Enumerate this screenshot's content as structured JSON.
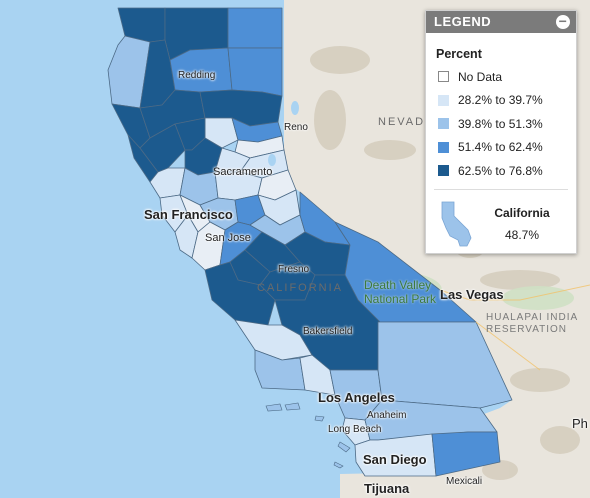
{
  "legend": {
    "header": "LEGEND",
    "collapse_icon": "minus-circle-icon",
    "title": "Percent",
    "items": [
      {
        "label": "No Data",
        "color": "#ffffff"
      },
      {
        "label": "28.2% to 39.7%",
        "color": "#d6e6f6"
      },
      {
        "label": "39.8% to 51.3%",
        "color": "#9cc3ea"
      },
      {
        "label": "51.4% to 62.4%",
        "color": "#4e8fd6"
      },
      {
        "label": "62.5% to 76.8%",
        "color": "#1c5a8e"
      }
    ],
    "state_name": "California",
    "state_value": "48.7%",
    "state_icon": "california-shape-icon"
  },
  "labels": {
    "nevada": "NEVADA",
    "california": "CALIFORNIA",
    "las_vegas": "Las Vegas",
    "san_francisco": "San Francisco",
    "san_jose": "San Jose",
    "sacramento": "Sacramento",
    "reno": "Reno",
    "redding": "Redding",
    "fresno": "Fresno",
    "bakersfield": "Bakersfield",
    "los_angeles": "Los Angeles",
    "anaheim": "Anaheim",
    "long_beach": "Long Beach",
    "san_diego": "San Diego",
    "tijuana": "Tijuana",
    "mexicali": "Mexicali",
    "death_valley_1": "Death Valley",
    "death_valley_2": "National Park",
    "hualapai_1": "HUALAPAI INDIA",
    "hualapai_2": "RESERVATION",
    "ph": "Ph"
  },
  "colors": {
    "water": "#a9d3f2",
    "land": "#e8e4dc",
    "terrain": "#d9d3c6",
    "county_border": "#5d7891"
  }
}
